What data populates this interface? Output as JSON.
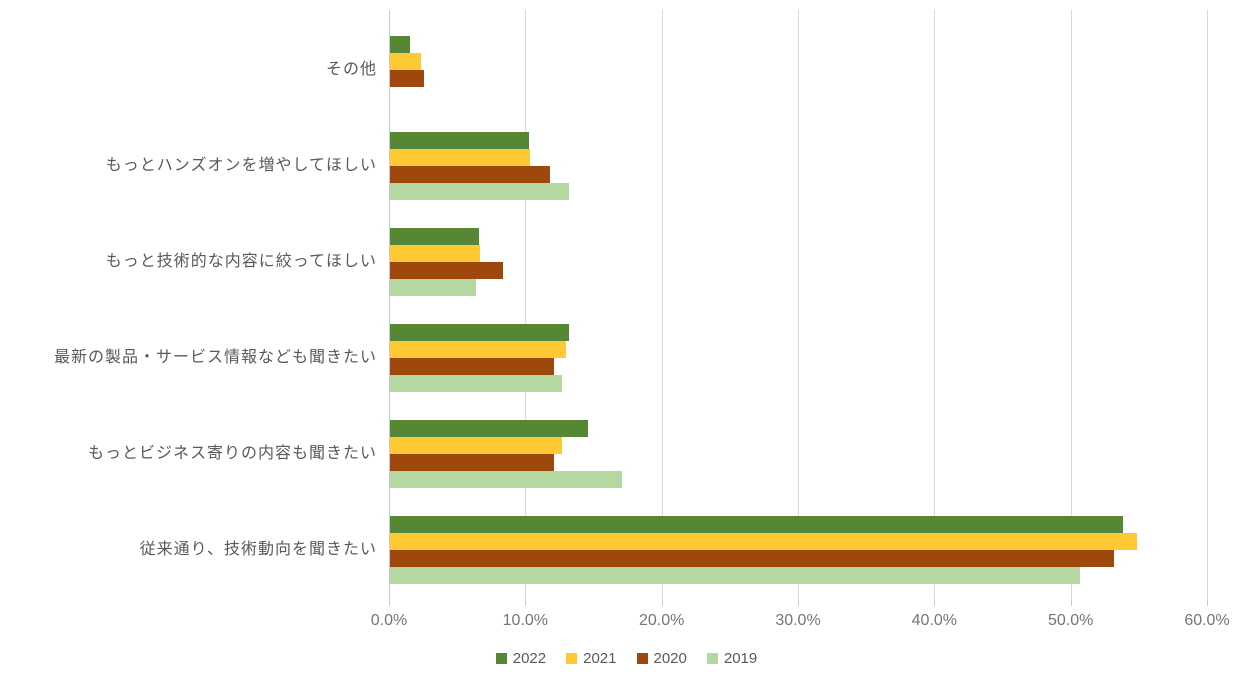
{
  "chart_data": {
    "type": "bar",
    "orientation": "horizontal",
    "title": "",
    "categories": [
      "その他",
      "もっとハンズオンを増やしてほしい",
      "もっと技術的な内容に絞ってほしい",
      "最新の製品・サービス情報なども聞きたい",
      "もっとビジネス寄りの内容も聞きたい",
      "従来通り、技術動向を聞きたい"
    ],
    "series": [
      {
        "name": "2022",
        "color": "#568735",
        "values": [
          1.5,
          10.2,
          6.5,
          13.1,
          14.5,
          53.8
        ]
      },
      {
        "name": "2021",
        "color": "#FFC933",
        "values": [
          2.3,
          10.3,
          6.6,
          12.9,
          12.6,
          54.8
        ]
      },
      {
        "name": "2020",
        "color": "#9E480E",
        "values": [
          2.5,
          11.7,
          8.3,
          12.0,
          12.0,
          53.1
        ]
      },
      {
        "name": "2019",
        "color": "#B5D8A0",
        "values": [
          0,
          13.1,
          6.3,
          12.6,
          17.0,
          50.6
        ]
      }
    ],
    "x_axis": {
      "min": 0,
      "max": 60,
      "tick_step": 10,
      "tick_labels": [
        "0.0%",
        "10.0%",
        "20.0%",
        "30.0%",
        "40.0%",
        "50.0%",
        "60.0%"
      ],
      "unit": "percent"
    },
    "legend": {
      "position": "bottom",
      "entries": [
        "2022",
        "2021",
        "2020",
        "2019"
      ]
    },
    "grid": true,
    "colors": {
      "gridline": "#D9D9D9",
      "axis_text": "#757575",
      "category_text": "#595959",
      "legend_text": "#595959",
      "background": "#FFFFFF"
    }
  }
}
